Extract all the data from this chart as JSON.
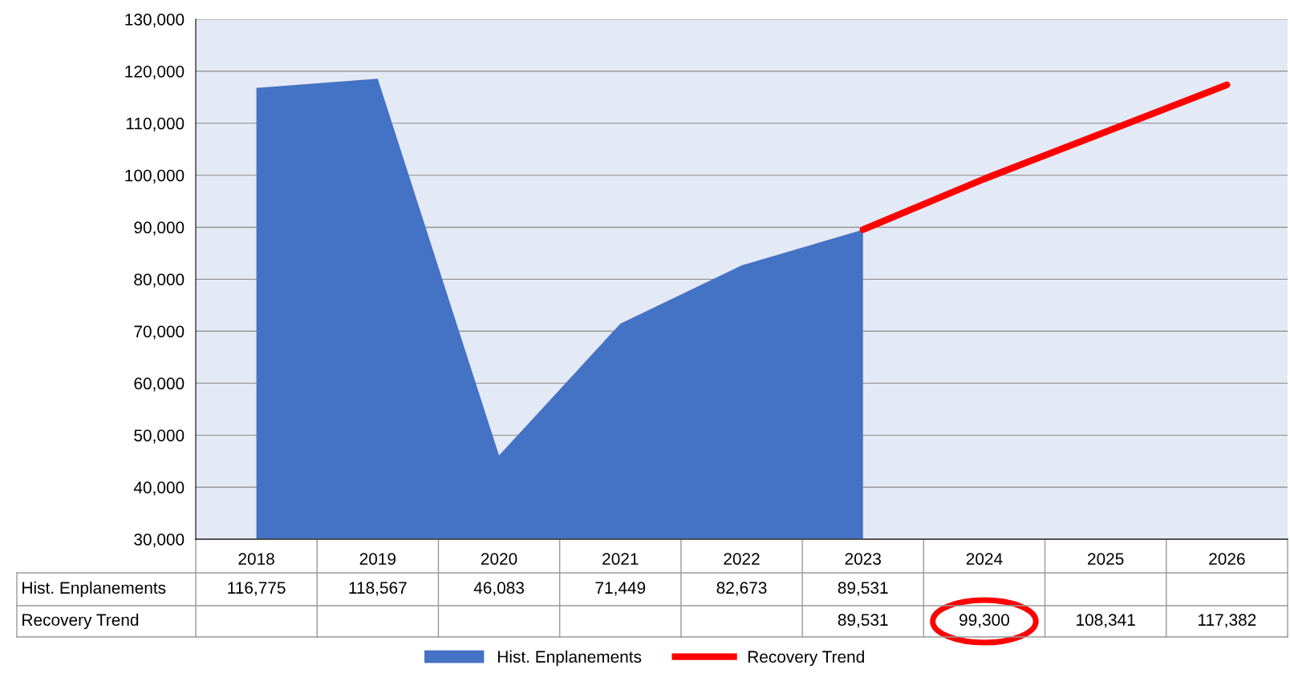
{
  "chart_data": {
    "type": "area",
    "categories": [
      "2018",
      "2019",
      "2020",
      "2021",
      "2022",
      "2023",
      "2024",
      "2025",
      "2026"
    ],
    "series": [
      {
        "name": "Hist. Enplanements",
        "color": "#4472c4",
        "values": [
          116775,
          118567,
          46083,
          71449,
          82673,
          89531,
          null,
          null,
          null
        ],
        "value_labels": [
          "116,775",
          "118,567",
          "46,083",
          "71,449",
          "82,673",
          "89,531",
          null,
          null,
          null
        ]
      },
      {
        "name": "Recovery Trend",
        "type": "line",
        "color": "#ff0000",
        "values": [
          null,
          null,
          null,
          null,
          null,
          89531,
          99300,
          108341,
          117382
        ],
        "value_labels": [
          null,
          null,
          null,
          null,
          null,
          "89,531",
          "99,300",
          "108,341",
          "117,382"
        ]
      }
    ],
    "ylim": [
      30000,
      130000
    ],
    "yticks": [
      {
        "value": 30000,
        "label": "30,000"
      },
      {
        "value": 40000,
        "label": "40,000"
      },
      {
        "value": 50000,
        "label": "50,000"
      },
      {
        "value": 60000,
        "label": "60,000"
      },
      {
        "value": 70000,
        "label": "70,000"
      },
      {
        "value": 80000,
        "label": "80,000"
      },
      {
        "value": 90000,
        "label": "90,000"
      },
      {
        "value": 100000,
        "label": "100,000"
      },
      {
        "value": 110000,
        "label": "110,000"
      },
      {
        "value": 120000,
        "label": "120,000"
      },
      {
        "value": 130000,
        "label": "130,000"
      }
    ],
    "grid": "y",
    "legend": "bottom"
  }
}
